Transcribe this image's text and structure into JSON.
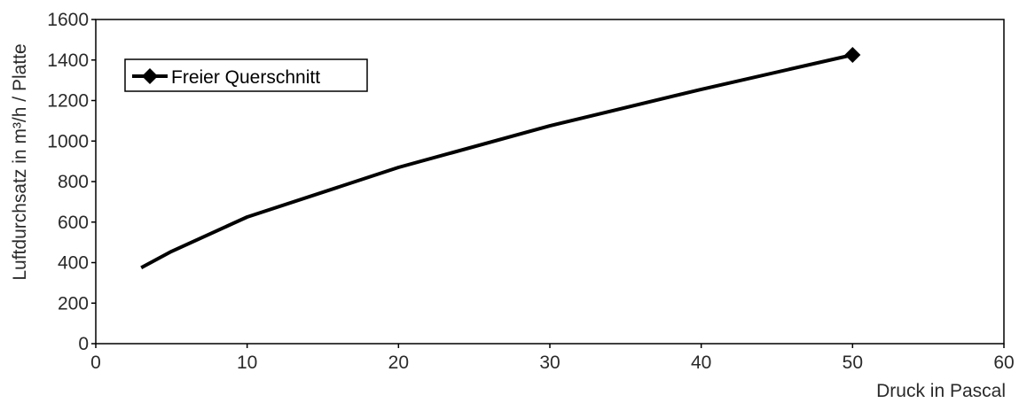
{
  "chart_data": {
    "type": "line",
    "title": "",
    "xlabel": "Druck in Pascal",
    "ylabel": "Luftdurchsatz in m³/h / Platte",
    "xlim": [
      0,
      60
    ],
    "ylim": [
      0,
      1600
    ],
    "xticks": [
      0,
      10,
      20,
      30,
      40,
      50,
      60
    ],
    "yticks": [
      0,
      200,
      400,
      600,
      800,
      1000,
      1200,
      1400,
      1600
    ],
    "grid": false,
    "legend_position": "top-left",
    "series": [
      {
        "name": "Freier Querschnitt",
        "color": "#000000",
        "marker": "diamond",
        "x": [
          3,
          5,
          10,
          20,
          30,
          40,
          50
        ],
        "y": [
          375,
          455,
          625,
          870,
          1075,
          1255,
          1425
        ]
      }
    ]
  }
}
